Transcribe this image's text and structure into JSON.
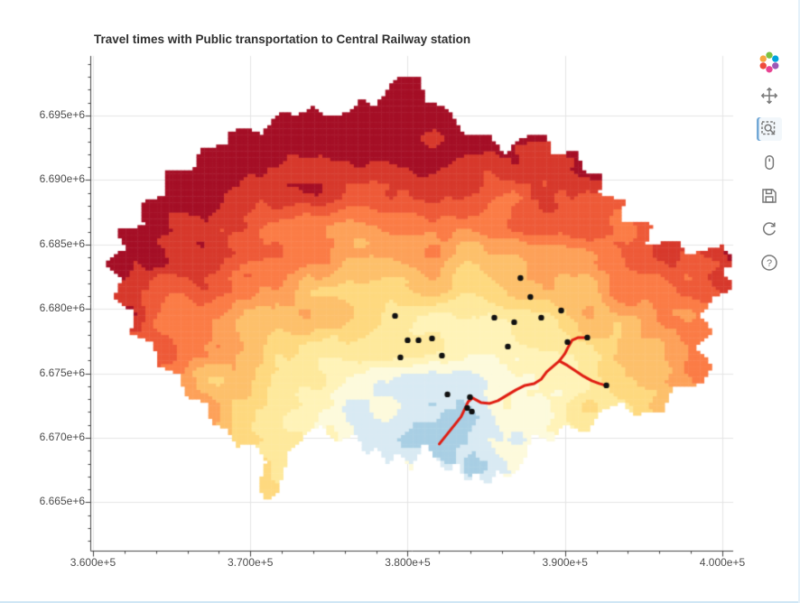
{
  "title": "Travel times with Public transportation to Central Railway station",
  "toolbar": {
    "logo_colors": [
      "#7ac143",
      "#00a4dc",
      "#9b59b6",
      "#e84393",
      "#ef4b3c",
      "#f7a541"
    ],
    "tools": [
      {
        "name": "pan",
        "active": false
      },
      {
        "name": "box-zoom",
        "active": true
      },
      {
        "name": "wheel-zoom",
        "active": false
      },
      {
        "name": "save",
        "active": false
      },
      {
        "name": "reset",
        "active": false
      },
      {
        "name": "help",
        "active": false
      }
    ]
  },
  "chart_data": {
    "type": "heatmap",
    "title": "Travel times with Public transportation to Central Railway station",
    "x_range": [
      359830,
      400690
    ],
    "y_range": [
      6661250,
      6699620
    ],
    "x_ticks": [
      {
        "label": "3.600e+5",
        "value": 360000
      },
      {
        "label": "3.700e+5",
        "value": 370000
      },
      {
        "label": "3.800e+5",
        "value": 380000
      },
      {
        "label": "3.900e+5",
        "value": 390000
      },
      {
        "label": "4.000e+5",
        "value": 400000
      }
    ],
    "y_ticks": [
      {
        "label": "6.695e+6",
        "value": 6695000
      },
      {
        "label": "6.690e+6",
        "value": 6690000
      },
      {
        "label": "6.685e+6",
        "value": 6685000
      },
      {
        "label": "6.680e+6",
        "value": 6680000
      },
      {
        "label": "6.675e+6",
        "value": 6675000
      },
      {
        "label": "6.670e+6",
        "value": 6670000
      },
      {
        "label": "6.665e+6",
        "value": 6665000
      }
    ],
    "grid_color": "#e5e5e5",
    "axis_color": "#444444",
    "tick_label_color": "#4d4d4d",
    "cell_size_m": 250,
    "station": {
      "x": 382300,
      "y": 6670100
    },
    "max_travel_scale_m": 26500,
    "palette": [
      "#a9cfe4",
      "#d9eaf3",
      "#fdfadc",
      "#fff3b8",
      "#fee99c",
      "#fed97f",
      "#fdc06b",
      "#fda159",
      "#fb7c46",
      "#ee5a38",
      "#d7392c",
      "#a50f26"
    ],
    "noise": {
      "amplitude": 0.24,
      "scale_coarse_m": 2400,
      "scale_fine_m": 900,
      "y_weight": 1.1
    },
    "region_outline": [
      [
        379340,
        6697940
      ],
      [
        380660,
        6698080
      ],
      [
        381180,
        6696120
      ],
      [
        382500,
        6695560
      ],
      [
        383480,
        6693600
      ],
      [
        385260,
        6693460
      ],
      [
        386120,
        6691920
      ],
      [
        387210,
        6693320
      ],
      [
        388760,
        6693600
      ],
      [
        389220,
        6692060
      ],
      [
        390820,
        6692200
      ],
      [
        391110,
        6690660
      ],
      [
        392430,
        6690520
      ],
      [
        392140,
        6688910
      ],
      [
        393810,
        6688420
      ],
      [
        393460,
        6686810
      ],
      [
        395530,
        6686600
      ],
      [
        395190,
        6685060
      ],
      [
        397250,
        6685200
      ],
      [
        397710,
        6684220
      ],
      [
        400010,
        6684920
      ],
      [
        400810,
        6683660
      ],
      [
        400010,
        6682960
      ],
      [
        400700,
        6681700
      ],
      [
        399430,
        6680860
      ],
      [
        398570,
        6679460
      ],
      [
        399430,
        6678200
      ],
      [
        398170,
        6677010
      ],
      [
        399430,
        6675610
      ],
      [
        398750,
        6674210
      ],
      [
        396850,
        6673860
      ],
      [
        396280,
        6672110
      ],
      [
        394270,
        6671760
      ],
      [
        393690,
        6672810
      ],
      [
        392260,
        6672110
      ],
      [
        391400,
        6670360
      ],
      [
        389960,
        6671060
      ],
      [
        389100,
        6669660
      ],
      [
        387950,
        6670360
      ],
      [
        387380,
        6668260
      ],
      [
        386520,
        6666860
      ],
      [
        385660,
        6667560
      ],
      [
        385080,
        6666160
      ],
      [
        384340,
        6667560
      ],
      [
        383760,
        6666510
      ],
      [
        383080,
        6668260
      ],
      [
        382620,
        6667210
      ],
      [
        381640,
        6668610
      ],
      [
        381070,
        6669660
      ],
      [
        380200,
        6667560
      ],
      [
        379340,
        6669030
      ],
      [
        378770,
        6667910
      ],
      [
        378080,
        6669310
      ],
      [
        377330,
        6668610
      ],
      [
        376760,
        6670360
      ],
      [
        375440,
        6669660
      ],
      [
        374470,
        6671060
      ],
      [
        373600,
        6670360
      ],
      [
        372460,
        6668960
      ],
      [
        371770,
        6665810
      ],
      [
        371020,
        6665110
      ],
      [
        370450,
        6666160
      ],
      [
        371020,
        6668260
      ],
      [
        370160,
        6669660
      ],
      [
        369130,
        6669310
      ],
      [
        368550,
        6670710
      ],
      [
        367580,
        6671060
      ],
      [
        367180,
        6672810
      ],
      [
        365850,
        6673160
      ],
      [
        365570,
        6674910
      ],
      [
        364130,
        6675610
      ],
      [
        363850,
        6677360
      ],
      [
        362410,
        6678060
      ],
      [
        362580,
        6679810
      ],
      [
        361260,
        6680860
      ],
      [
        361840,
        6682260
      ],
      [
        360690,
        6683660
      ],
      [
        362120,
        6684710
      ],
      [
        361440,
        6686110
      ],
      [
        363270,
        6686460
      ],
      [
        362980,
        6688210
      ],
      [
        364710,
        6688910
      ],
      [
        364540,
        6690660
      ],
      [
        366430,
        6690800
      ],
      [
        366830,
        6692410
      ],
      [
        368440,
        6692760
      ],
      [
        368730,
        6693810
      ],
      [
        369590,
        6694020
      ],
      [
        370730,
        6693600
      ],
      [
        371880,
        6695280
      ],
      [
        373030,
        6695000
      ],
      [
        373890,
        6695700
      ],
      [
        374750,
        6694860
      ],
      [
        376190,
        6695210
      ],
      [
        377050,
        6696260
      ],
      [
        377910,
        6695700
      ],
      [
        378660,
        6696960
      ]
    ],
    "poi_color": "#111111",
    "poi_points": [
      [
        379200,
        6679460
      ],
      [
        380000,
        6677570
      ],
      [
        379540,
        6676240
      ],
      [
        380690,
        6677570
      ],
      [
        381550,
        6677710
      ],
      [
        382180,
        6676380
      ],
      [
        382530,
        6673370
      ],
      [
        384080,
        6672040
      ],
      [
        383790,
        6672320
      ],
      [
        383960,
        6673160
      ],
      [
        385510,
        6679320
      ],
      [
        386370,
        6677080
      ],
      [
        386770,
        6678970
      ],
      [
        387800,
        6680930
      ],
      [
        387170,
        6682400
      ],
      [
        388490,
        6679320
      ],
      [
        389760,
        6679880
      ],
      [
        391420,
        6677780
      ],
      [
        392630,
        6674070
      ],
      [
        390160,
        6677430
      ]
    ],
    "route": {
      "color": "#e01d12",
      "width": 3,
      "branches": [
        [
          [
            382010,
            6669520
          ],
          [
            382700,
            6670570
          ],
          [
            383390,
            6671620
          ],
          [
            383850,
            6672810
          ],
          [
            384130,
            6673090
          ],
          [
            384650,
            6672740
          ],
          [
            385220,
            6672670
          ],
          [
            385740,
            6672880
          ],
          [
            386310,
            6673300
          ],
          [
            386890,
            6673720
          ],
          [
            387460,
            6674070
          ],
          [
            388040,
            6674210
          ],
          [
            388500,
            6674560
          ],
          [
            388840,
            6675120
          ],
          [
            389240,
            6675540
          ],
          [
            389640,
            6675960
          ],
          [
            389990,
            6676520
          ],
          [
            390220,
            6677080
          ],
          [
            390450,
            6677570
          ],
          [
            390850,
            6677780
          ],
          [
            391250,
            6677780
          ]
        ],
        [
          [
            389640,
            6675960
          ],
          [
            390160,
            6675610
          ],
          [
            390680,
            6675190
          ],
          [
            391190,
            6674770
          ],
          [
            391710,
            6674420
          ],
          [
            392170,
            6674210
          ],
          [
            392570,
            6674070
          ]
        ]
      ]
    }
  }
}
